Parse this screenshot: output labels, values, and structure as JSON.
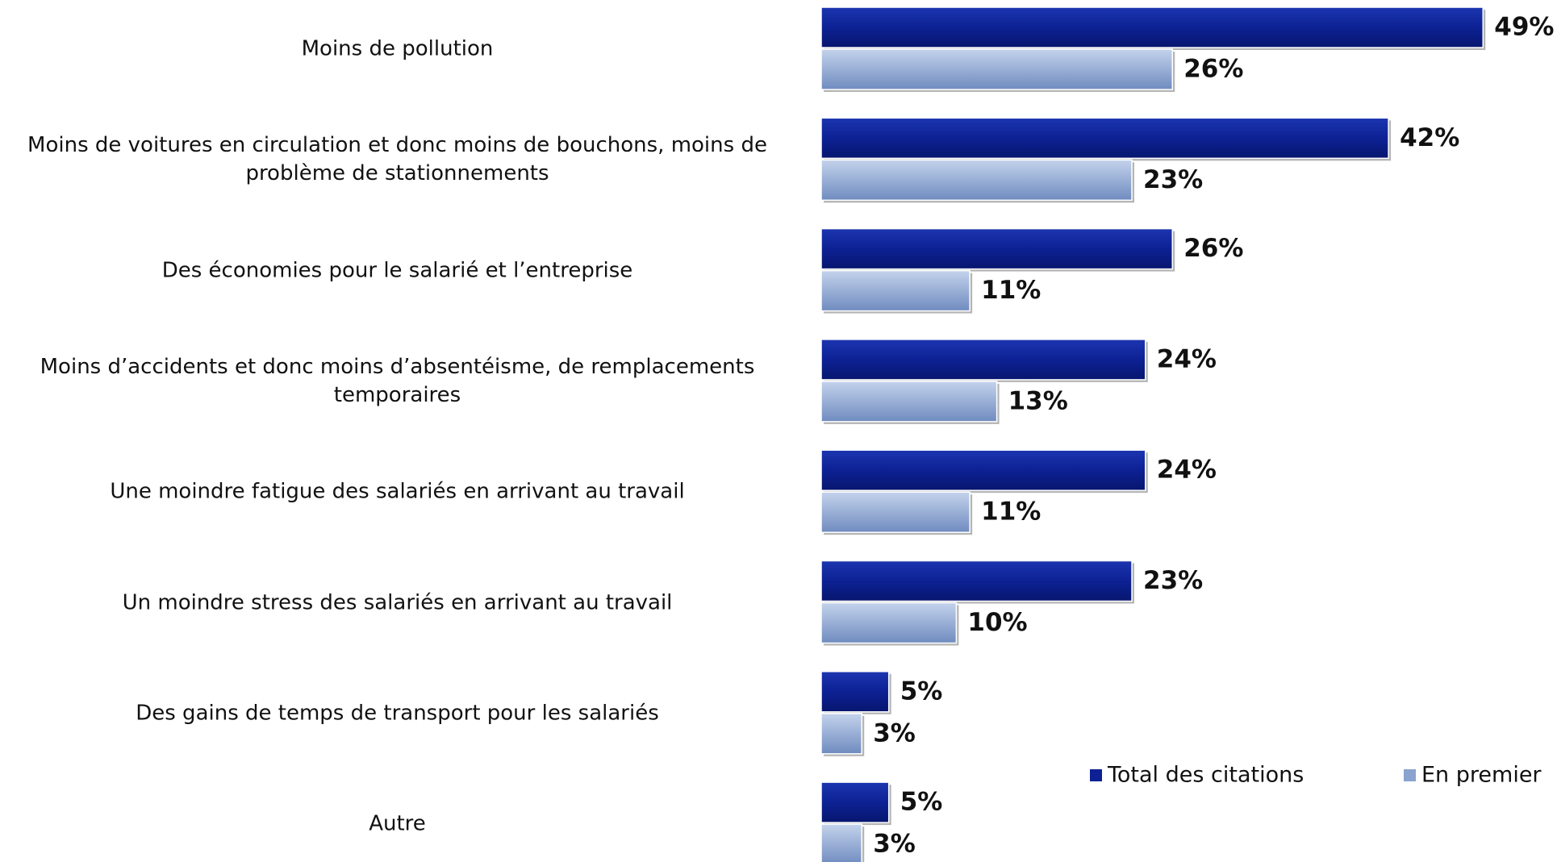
{
  "chart_data": {
    "type": "bar",
    "orientation": "horizontal",
    "categories": [
      "Moins de pollution",
      "Moins de voitures en circulation et donc moins de bouchons, moins de problème de stationnements",
      "Des économies pour le salarié et l’entreprise",
      "Moins d’accidents et donc moins d’absentéisme, de remplacements temporaires",
      "Une moindre fatigue des salariés en arrivant au travail",
      "Un moindre stress des salariés en arrivant au travail",
      "Des gains de temps de transport pour les salariés",
      "Autre"
    ],
    "series": [
      {
        "name": "Total des citations",
        "color": "#0d2194",
        "values": [
          49,
          42,
          26,
          24,
          24,
          23,
          5,
          5
        ],
        "value_labels": [
          "49%",
          "42%",
          "26%",
          "24%",
          "24%",
          "23%",
          "5%",
          "5%"
        ]
      },
      {
        "name": "En premier",
        "color": "#8aa3cf",
        "values": [
          26,
          23,
          11,
          13,
          11,
          10,
          3,
          3
        ],
        "value_labels": [
          "26%",
          "23%",
          "11%",
          "13%",
          "11%",
          "10%",
          "3%",
          "3%"
        ]
      }
    ],
    "legend": "bottom-right"
  }
}
